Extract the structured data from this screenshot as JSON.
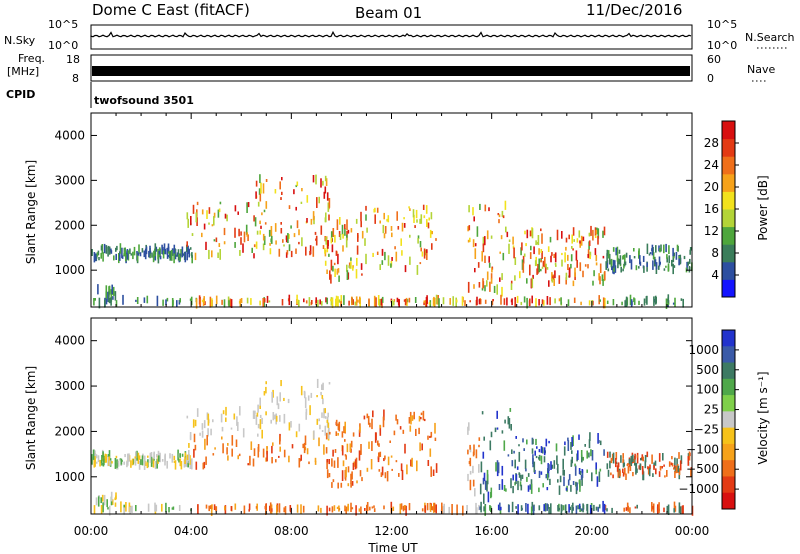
{
  "header": {
    "station": "Dome C East (fitACF)",
    "beam": "Beam 01",
    "date": "11/Dec/2016"
  },
  "side_labels": {
    "nsky": "N.Sky",
    "nsearch": "N.Search",
    "freq_line1": "Freq.",
    "freq_line2": "[MHz]",
    "nave": "Nave",
    "cpid": "CPID"
  },
  "cpid_text": "twofsound 3501",
  "chart_data": [
    {
      "type": "line",
      "name": "noise",
      "left_ticks": [
        "10^5",
        "10^0"
      ],
      "right_ticks": [
        "10^5",
        "10^0"
      ],
      "left_label": "N.Sky",
      "right_label": "N.Search"
    },
    {
      "type": "line",
      "name": "frequency",
      "left_ticks": [
        "18",
        "8"
      ],
      "right_ticks": [
        "60",
        "0"
      ],
      "left_label": "Freq. [MHz]",
      "right_label": "Nave",
      "freq_mhz": 10.5
    },
    {
      "type": "heatmap",
      "name": "power",
      "xlabel": "",
      "ylabel": "Slant Range [km]",
      "y_ticks": [
        1000,
        2000,
        3000,
        4000
      ],
      "ylim": [
        180,
        4500
      ],
      "xlim": [
        0,
        24
      ],
      "x_ticks": [
        "00:00",
        "04:00",
        "08:00",
        "12:00",
        "16:00",
        "20:00",
        "00:00"
      ],
      "colorbar_label": "Power [dB]",
      "colorbar_ticks": [
        "4",
        "8",
        "12",
        "16",
        "20",
        "24",
        "28"
      ],
      "colorbar_colors": [
        "#1414ff",
        "#2d4fa0",
        "#3a7d5a",
        "#4ea63c",
        "#b3d437",
        "#f2e21c",
        "#f6a21a",
        "#ef6f1a",
        "#e33a14",
        "#d81010"
      ]
    },
    {
      "type": "heatmap",
      "name": "velocity",
      "xlabel": "Time UT",
      "ylabel": "Slant Range [km]",
      "y_ticks": [
        1000,
        2000,
        3000,
        4000
      ],
      "ylim": [
        180,
        4500
      ],
      "xlim": [
        0,
        24
      ],
      "x_ticks": [
        "00:00",
        "04:00",
        "08:00",
        "12:00",
        "16:00",
        "20:00",
        "00:00"
      ],
      "colorbar_label": "Velocity [m s⁻¹]",
      "colorbar_ticks": [
        "1000",
        "500",
        "100",
        "25",
        "−25",
        "−100",
        "−500",
        "−1000"
      ],
      "colorbar_colors": [
        "#2233cc",
        "#3a5aa8",
        "#3d7a63",
        "#4fa84a",
        "#7fd04a",
        "#c8c8c8",
        "#f6c21a",
        "#f6a21a",
        "#ef6f1a",
        "#e33a14",
        "#d81010"
      ]
    }
  ]
}
